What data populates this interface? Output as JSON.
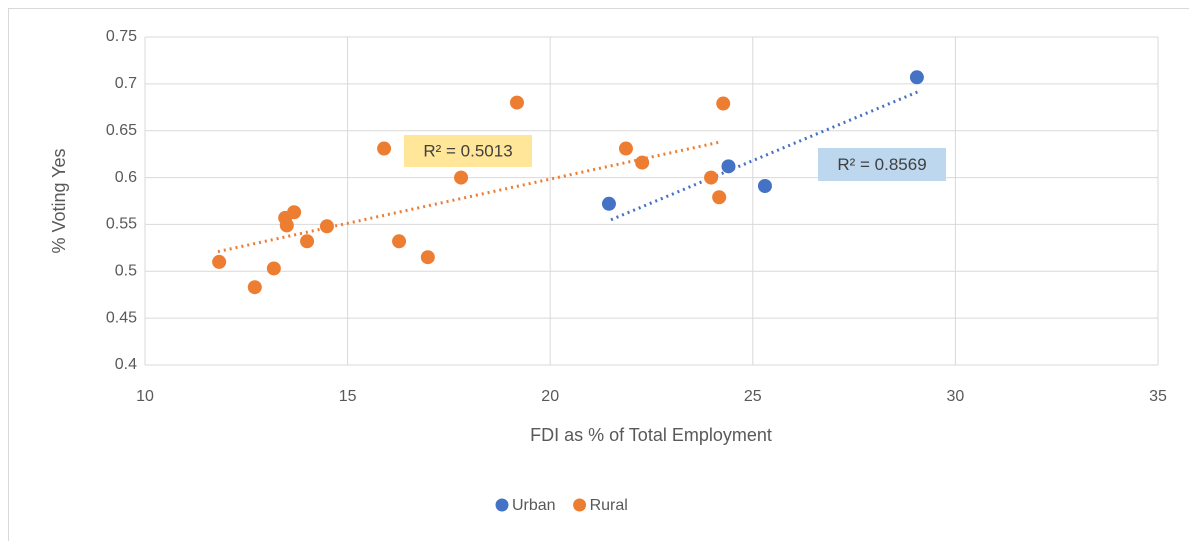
{
  "chart_data": {
    "type": "scatter",
    "x_label": "FDI as % of Total Employment",
    "y_label": "% Voting Yes",
    "xlim": [
      10,
      35
    ],
    "xticks": [
      10,
      15,
      20,
      25,
      30,
      35
    ],
    "ylim": [
      0.4,
      0.75
    ],
    "yticks": [
      0.4,
      0.45,
      0.5,
      0.55,
      0.6,
      0.65,
      0.7,
      0.75
    ],
    "grid": true,
    "legend": "bottom",
    "series": [
      {
        "name": "Urban",
        "color": "#4472c4",
        "x": [
          21.45,
          24.4,
          25.3,
          29.05
        ],
        "values": [
          0.572,
          0.612,
          0.591,
          0.707
        ]
      },
      {
        "name": "Rural",
        "color": "#ed7d31",
        "x": [
          11.83,
          12.71,
          13.18,
          13.46,
          13.5,
          13.68,
          14.0,
          14.49,
          15.9,
          16.27,
          16.98,
          17.8,
          19.18,
          21.87,
          22.27,
          23.97,
          24.17,
          24.27
        ],
        "values": [
          0.51,
          0.483,
          0.503,
          0.557,
          0.549,
          0.563,
          0.532,
          0.548,
          0.631,
          0.532,
          0.515,
          0.6,
          0.68,
          0.631,
          0.616,
          0.6,
          0.579,
          0.679
        ]
      }
    ],
    "trendlines": [
      {
        "label": "R² = 0.5013",
        "color": "#ed7d31",
        "label_color": "#ffe699",
        "x": [
          11.8,
          24.2
        ],
        "values": [
          0.521,
          0.638
        ]
      },
      {
        "label": "R² = 0.8569",
        "color": "#4472c4",
        "label_color": "#bdd7ee",
        "x": [
          21.5,
          29.1
        ],
        "values": [
          0.555,
          0.692
        ]
      }
    ]
  }
}
